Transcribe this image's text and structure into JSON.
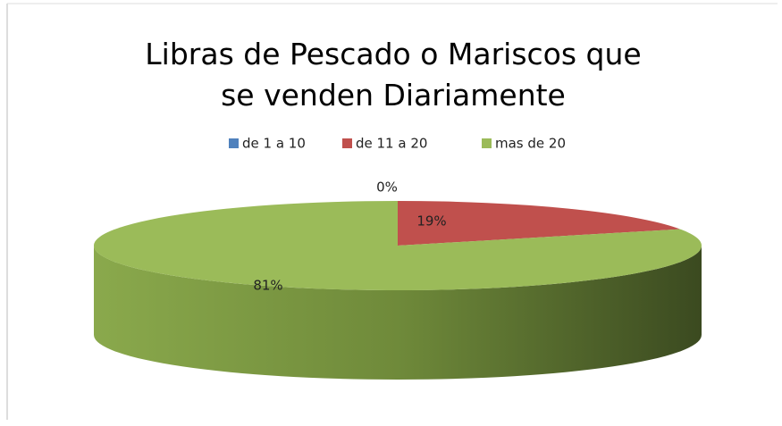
{
  "chart_data": {
    "type": "pie3d",
    "title": "Libras de Pescado o Mariscos que se venden Diariamente",
    "categories": [
      "de 1 a 10",
      "de 11 a 20",
      "mas de 20"
    ],
    "values": [
      0,
      19,
      81
    ],
    "value_labels": [
      "0%",
      "19%",
      "81%"
    ],
    "colors": [
      "#4f81bd",
      "#c0504d",
      "#9bbb59"
    ],
    "legend": "top"
  }
}
